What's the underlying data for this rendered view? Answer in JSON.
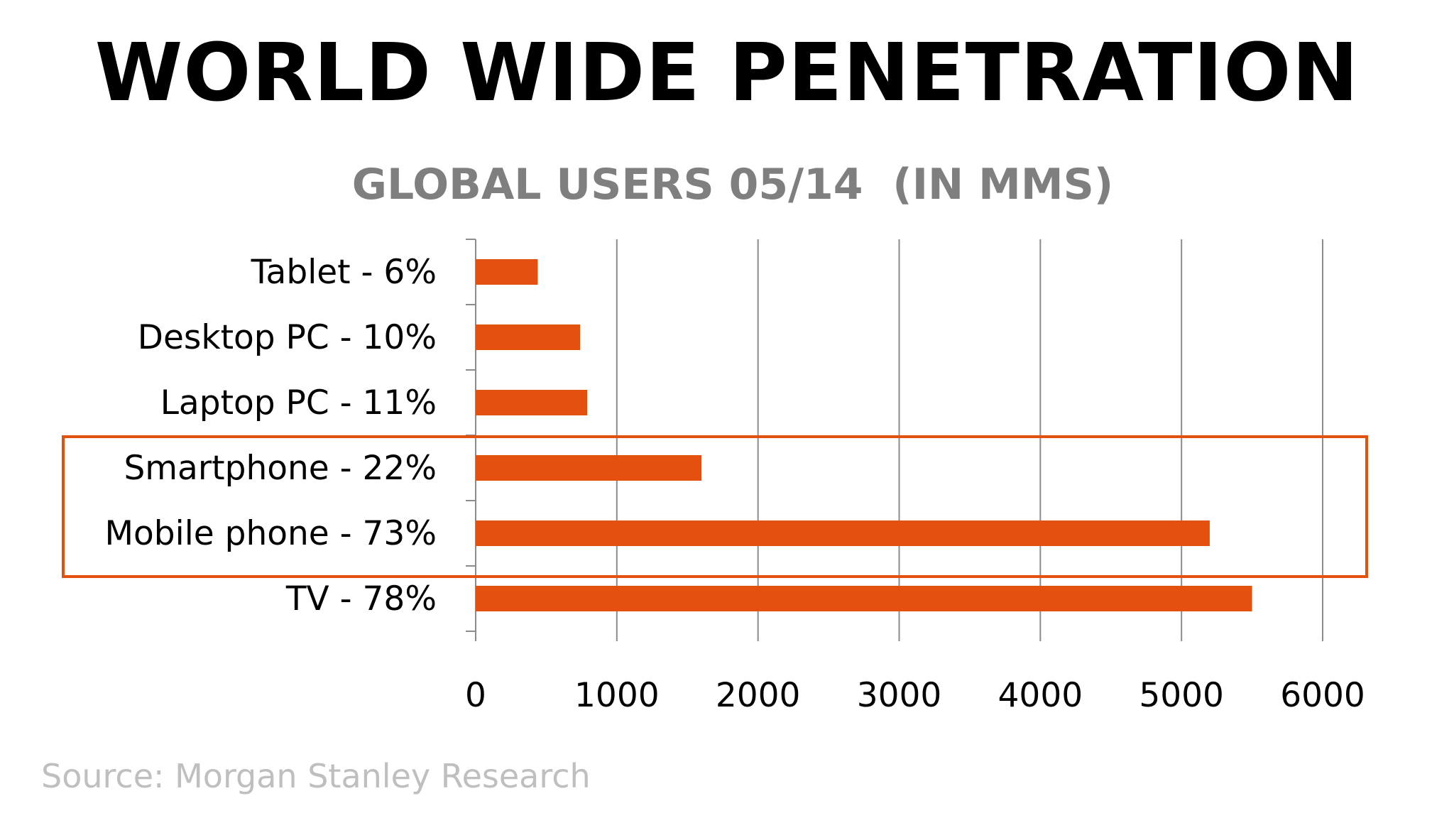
{
  "slide": {
    "title": "WORLD WIDE PENETRATION",
    "source": "Source: Morgan Stanley Research"
  },
  "colors": {
    "bar": "#E4500E",
    "highlight_box": "#E4500E",
    "chart_title": "#7F7F7F",
    "source_text": "#BFBFBF",
    "gridline": "#8C8C8C",
    "text": "#000000"
  },
  "chart_data": {
    "type": "bar",
    "orientation": "horizontal",
    "title": "GLOBAL USERS 05/14  (IN MMS)",
    "xlabel": "",
    "ylabel": "",
    "categories": [
      "Tablet - 6%",
      "Desktop PC - 10%",
      "Laptop PC - 11%",
      "Smartphone - 22%",
      "Mobile phone - 73%",
      "TV - 78%"
    ],
    "values": [
      440,
      740,
      790,
      1600,
      5200,
      5500
    ],
    "xlim": [
      0,
      6000
    ],
    "xticks": [
      0,
      1000,
      2000,
      3000,
      4000,
      5000,
      6000
    ],
    "grid": "vertical",
    "legend": "none",
    "highlighted_categories": [
      "Smartphone - 22%",
      "Mobile phone - 73%"
    ]
  }
}
